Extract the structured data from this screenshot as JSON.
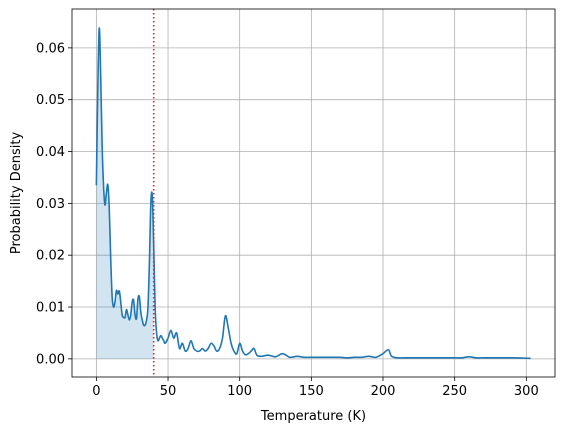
{
  "chart_data": {
    "type": "area",
    "title": "",
    "xlabel": "Temperature (K)",
    "ylabel": "Probability Density",
    "xlim": [
      -17,
      320
    ],
    "ylim": [
      -0.0035,
      0.0675
    ],
    "xticks": [
      0,
      50,
      100,
      150,
      200,
      250,
      300
    ],
    "yticks": [
      0.0,
      0.01,
      0.02,
      0.03,
      0.04,
      0.05,
      0.06
    ],
    "ytick_labels": [
      "0.00",
      "0.01",
      "0.02",
      "0.03",
      "0.04",
      "0.05",
      "0.06"
    ],
    "grid": true,
    "series": [
      {
        "color": "#1f77b4",
        "fill_color": "#1f77b4",
        "fill_opacity": 0.2,
        "x": [
          0,
          1,
          2,
          3,
          4,
          5,
          6,
          7,
          8,
          9,
          10,
          11,
          12,
          13,
          14,
          15,
          16,
          17,
          18,
          19,
          20,
          21,
          22,
          23,
          24,
          25,
          26,
          27,
          28,
          29,
          30,
          31,
          32,
          33,
          34,
          35,
          36,
          37,
          38,
          39,
          40,
          41,
          42,
          43,
          44,
          45,
          46,
          47,
          48,
          50,
          52,
          54,
          56,
          58,
          60,
          62,
          64,
          66,
          68,
          70,
          72,
          74,
          76,
          78,
          80,
          82,
          84,
          86,
          88,
          90,
          92,
          94,
          96,
          98,
          100,
          102,
          104,
          106,
          108,
          110,
          112,
          115,
          120,
          125,
          130,
          135,
          140,
          145,
          150,
          155,
          160,
          165,
          170,
          175,
          180,
          185,
          190,
          195,
          200,
          202,
          204,
          206,
          210,
          215,
          220,
          225,
          230,
          240,
          250,
          255,
          260,
          265,
          270,
          280,
          290,
          303
        ],
        "y": [
          0.0335,
          0.052,
          0.0638,
          0.055,
          0.0415,
          0.0335,
          0.0297,
          0.032,
          0.0336,
          0.029,
          0.0195,
          0.012,
          0.01,
          0.011,
          0.0132,
          0.0125,
          0.0131,
          0.011,
          0.0085,
          0.008,
          0.008,
          0.0095,
          0.0085,
          0.0075,
          0.0085,
          0.011,
          0.0113,
          0.0085,
          0.0078,
          0.0115,
          0.012,
          0.009,
          0.0075,
          0.0065,
          0.0065,
          0.0075,
          0.01,
          0.0185,
          0.03,
          0.0315,
          0.022,
          0.01,
          0.005,
          0.0035,
          0.004,
          0.0045,
          0.004,
          0.0035,
          0.003,
          0.004,
          0.0055,
          0.004,
          0.005,
          0.002,
          0.003,
          0.0015,
          0.002,
          0.0035,
          0.002,
          0.0015,
          0.0015,
          0.002,
          0.0015,
          0.002,
          0.003,
          0.0025,
          0.0015,
          0.002,
          0.004,
          0.0083,
          0.006,
          0.003,
          0.0015,
          0.001,
          0.003,
          0.0015,
          0.0008,
          0.001,
          0.0015,
          0.002,
          0.0007,
          0.0005,
          0.0007,
          0.0004,
          0.001,
          0.0003,
          0.0005,
          0.0003,
          0.0003,
          0.0003,
          0.0003,
          0.0003,
          0.0003,
          0.0002,
          0.0003,
          0.0003,
          0.0005,
          0.0003,
          0.001,
          0.0015,
          0.0017,
          0.0005,
          0.0002,
          0.0002,
          0.0002,
          0.0002,
          0.0002,
          0.0002,
          0.0002,
          0.0002,
          0.0004,
          0.0002,
          0.0002,
          0.0002,
          0.0002,
          0.0001
        ]
      }
    ],
    "vline": {
      "x": 40,
      "color": "#d62728",
      "style": "dotted"
    }
  }
}
